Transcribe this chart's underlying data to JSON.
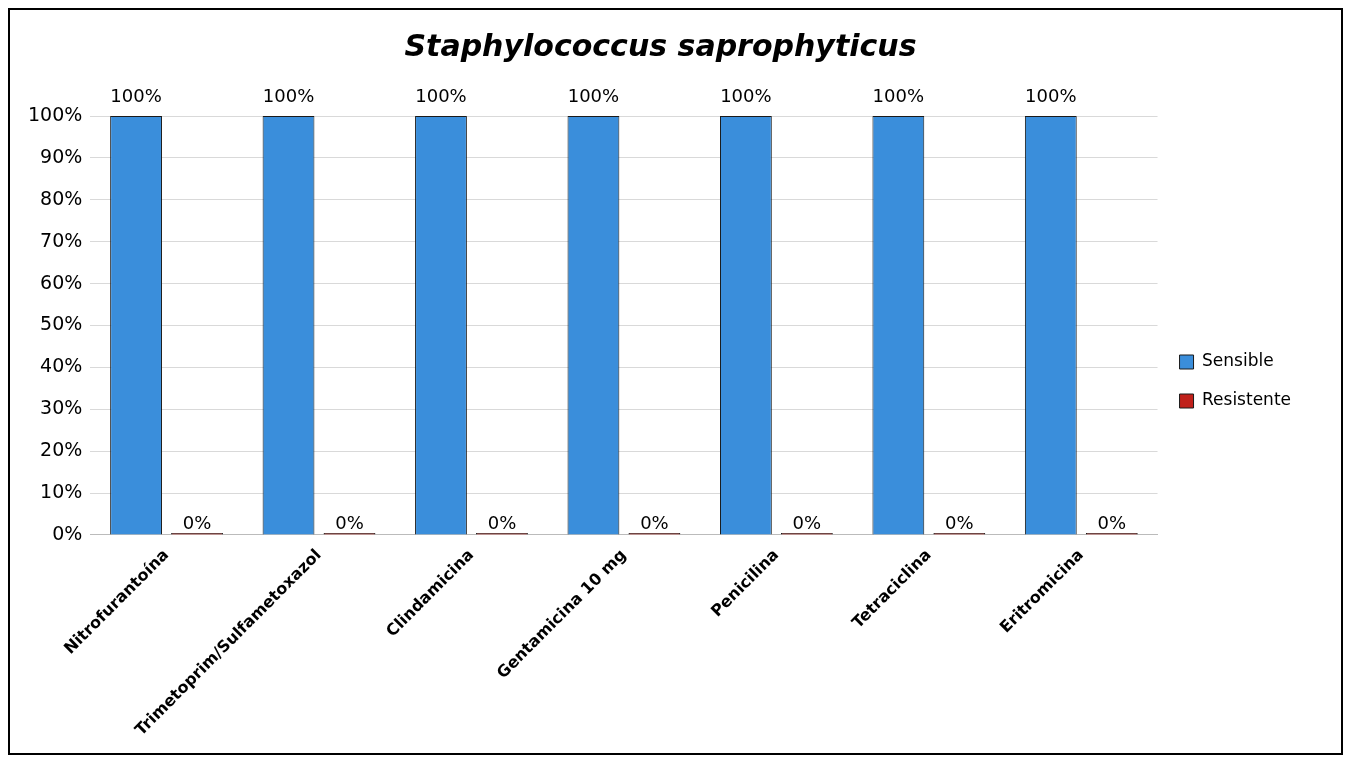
{
  "chart_data": {
    "type": "bar",
    "title": "Staphylococcus saprophyticus",
    "categories": [
      "Nitrofurantoína",
      "Trimetoprim/Sulfametoxazol",
      "Clindamicina",
      "Gentamicina 10 mg",
      "Penicilina",
      "Tetraciclina",
      "Eritromicina"
    ],
    "series": [
      {
        "name": "Sensible",
        "color": "#3a8edb",
        "values": [
          100,
          100,
          100,
          100,
          100,
          100,
          100
        ],
        "value_labels": [
          "100%",
          "100%",
          "100%",
          "100%",
          "100%",
          "100%",
          "100%"
        ]
      },
      {
        "name": "Resistente",
        "color": "#c0201a",
        "values": [
          0,
          0,
          0,
          0,
          0,
          0,
          0
        ],
        "value_labels": [
          "0%",
          "0%",
          "0%",
          "0%",
          "0%",
          "0%",
          "0%"
        ]
      }
    ],
    "ylim": [
      0,
      100
    ],
    "yticks": [
      {
        "value": 0,
        "label": "0%"
      },
      {
        "value": 10,
        "label": "10%"
      },
      {
        "value": 20,
        "label": "20%"
      },
      {
        "value": 30,
        "label": "30%"
      },
      {
        "value": 40,
        "label": "40%"
      },
      {
        "value": 50,
        "label": "50%"
      },
      {
        "value": 60,
        "label": "60%"
      },
      {
        "value": 70,
        "label": "70%"
      },
      {
        "value": 80,
        "label": "80%"
      },
      {
        "value": 90,
        "label": "90%"
      },
      {
        "value": 100,
        "label": "100%"
      }
    ],
    "grid": "y",
    "legend": "right"
  }
}
